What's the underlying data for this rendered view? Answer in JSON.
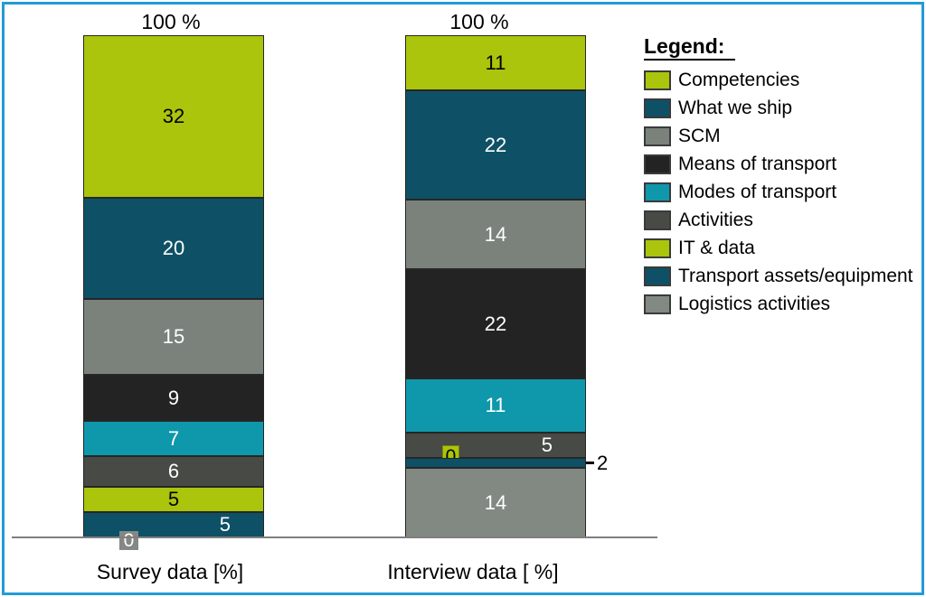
{
  "frame": {
    "border_color": "#229bd8",
    "background": "#ffffff"
  },
  "axis": {
    "color": "#7f7f7f"
  },
  "chart_data": {
    "type": "bar",
    "variant": "stacked-percentage-column",
    "unit": "%",
    "grid": false,
    "legend_position": "right",
    "categories_top_to_bottom": [
      "Competencies",
      "What we ship",
      "SCM",
      "Means of transport",
      "Modes of transport",
      "Activities",
      "IT & data",
      "Transport assets/equipment",
      "Logistics activities"
    ],
    "legend": {
      "title": "Legend:",
      "items": [
        {
          "label": "Competencies",
          "color": "#abc40c"
        },
        {
          "label": "What we ship",
          "color": "#0e5166"
        },
        {
          "label": "SCM",
          "color": "#7b827c"
        },
        {
          "label": "Means of transport",
          "color": "#232323"
        },
        {
          "label": "Modes of transport",
          "color": "#0f98ac"
        },
        {
          "label": "Activities",
          "color": "#484b45"
        },
        {
          "label": "IT & data",
          "color": "#abc40c"
        },
        {
          "label": "Transport assets/equipment",
          "color": "#0e5166"
        },
        {
          "label": "Logistics activities",
          "color": "#828882"
        }
      ]
    },
    "bars": [
      {
        "axis_label": "Survey data [%]",
        "total_label": "100 %",
        "segments_top_to_bottom": [
          {
            "name": "Competencies",
            "value": 32,
            "color": "#abc40c",
            "text_color": "#000000",
            "label_pos": "center"
          },
          {
            "name": "What we ship",
            "value": 20,
            "color": "#0e5166",
            "text_color": "#ffffff",
            "label_pos": "center"
          },
          {
            "name": "SCM",
            "value": 15,
            "color": "#7b827c",
            "text_color": "#ffffff",
            "label_pos": "center"
          },
          {
            "name": "Means of transport",
            "value": 9,
            "color": "#232323",
            "text_color": "#ffffff",
            "label_pos": "center"
          },
          {
            "name": "Modes of transport",
            "value": 7,
            "color": "#0f98ac",
            "text_color": "#ffffff",
            "label_pos": "center"
          },
          {
            "name": "Activities",
            "value": 6,
            "color": "#484b45",
            "text_color": "#ffffff",
            "label_pos": "center"
          },
          {
            "name": "IT & data",
            "value": 5,
            "color": "#abc40c",
            "text_color": "#000000",
            "label_pos": "center"
          },
          {
            "name": "Transport assets/equipment",
            "value": 5,
            "color": "#0e5166",
            "text_color": "#ffffff",
            "label_pos": "right"
          },
          {
            "name": "Logistics activities",
            "value": 0,
            "color": "#848884",
            "text_color": "#ffffff",
            "label_pos": "box-below-axis"
          }
        ]
      },
      {
        "axis_label": "Interview data [ %]",
        "total_label": "100 %",
        "segments_top_to_bottom": [
          {
            "name": "Competencies",
            "value": 11,
            "color": "#abc40c",
            "text_color": "#000000",
            "label_pos": "center"
          },
          {
            "name": "What we ship",
            "value": 22,
            "color": "#0e5166",
            "text_color": "#ffffff",
            "label_pos": "center"
          },
          {
            "name": "SCM",
            "value": 14,
            "color": "#7b827c",
            "text_color": "#ffffff",
            "label_pos": "center"
          },
          {
            "name": "Means of transport",
            "value": 22,
            "color": "#232323",
            "text_color": "#ffffff",
            "label_pos": "center"
          },
          {
            "name": "Modes of transport",
            "value": 11,
            "color": "#0f98ac",
            "text_color": "#ffffff",
            "label_pos": "center"
          },
          {
            "name": "Activities",
            "value": 5,
            "color": "#484b45",
            "text_color": "#ffffff",
            "label_pos": "right"
          },
          {
            "name": "IT & data",
            "value": 0,
            "color": "#abc40c",
            "text_color": "#000000",
            "label_pos": "box-overlap"
          },
          {
            "name": "Transport assets/equipment",
            "value": 2,
            "color": "#0e5166",
            "text_color": "#000000",
            "label_pos": "callout-right"
          },
          {
            "name": "Logistics activities",
            "value": 14,
            "color": "#828882",
            "text_color": "#ffffff",
            "label_pos": "center"
          }
        ]
      }
    ]
  }
}
